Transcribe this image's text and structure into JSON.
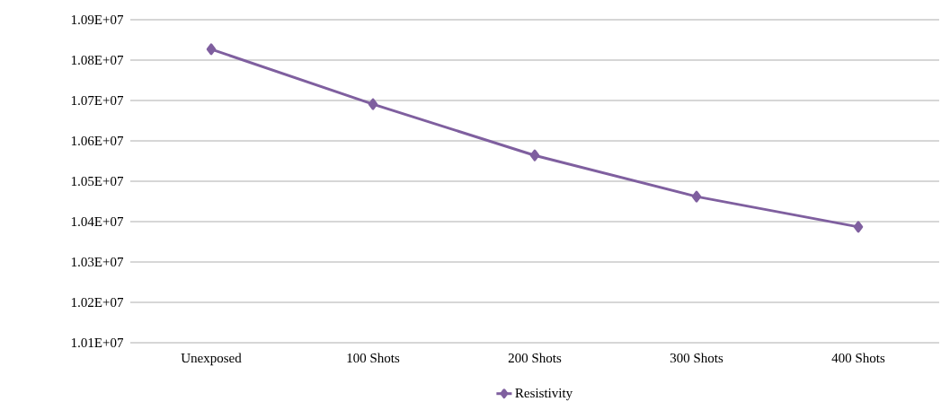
{
  "chart_data": {
    "type": "line",
    "categories": [
      "Unexposed",
      "100 Shots",
      "200 Shots",
      "300 Shots",
      "400 Shots"
    ],
    "series": [
      {
        "name": "Resistivity",
        "color": "#7f5f9f",
        "values": [
          10827000,
          10691000,
          10564000,
          10462000,
          10387000
        ]
      }
    ],
    "ylim": [
      10100000,
      10900000
    ],
    "yticks": [
      {
        "value": 10100000,
        "label": "1.01E+07"
      },
      {
        "value": 10200000,
        "label": "1.02E+07"
      },
      {
        "value": 10300000,
        "label": "1.03E+07"
      },
      {
        "value": 10400000,
        "label": "1.04E+07"
      },
      {
        "value": 10500000,
        "label": "1.05E+07"
      },
      {
        "value": 10600000,
        "label": "1.06E+07"
      },
      {
        "value": 10700000,
        "label": "1.07E+07"
      },
      {
        "value": 10800000,
        "label": "1.08E+07"
      },
      {
        "value": 10900000,
        "label": "1.09E+07"
      }
    ],
    "grid": "y",
    "legend": "bottom",
    "marker": "diamond",
    "line_style": "solid"
  }
}
